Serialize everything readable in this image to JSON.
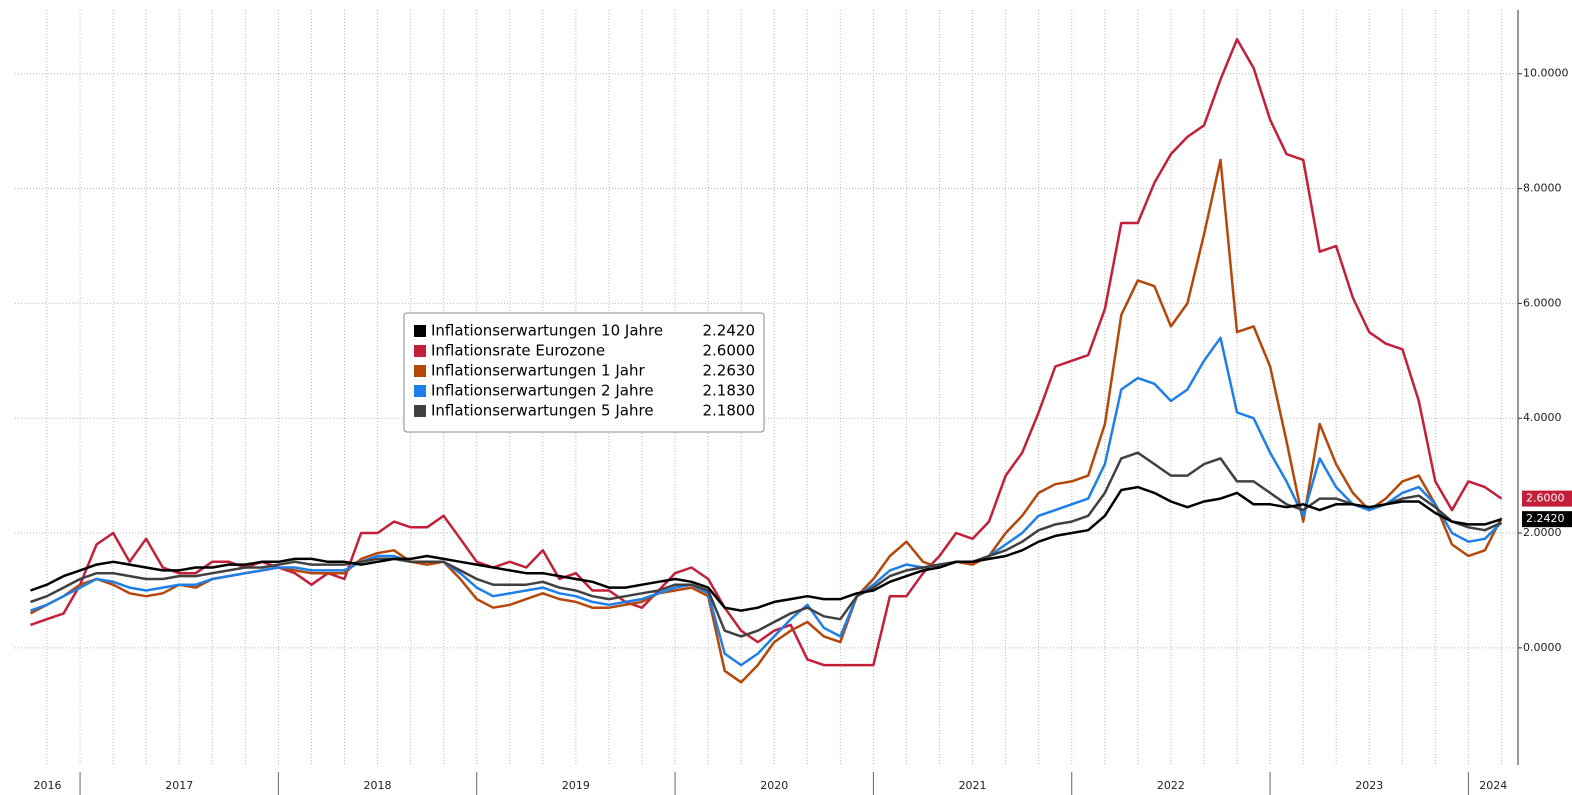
{
  "chart_data": {
    "type": "line",
    "x": [
      2016.75,
      2016.833,
      2016.917,
      2017.0,
      2017.083,
      2017.167,
      2017.25,
      2017.333,
      2017.417,
      2017.5,
      2017.583,
      2017.667,
      2017.75,
      2017.833,
      2017.917,
      2018.0,
      2018.083,
      2018.167,
      2018.25,
      2018.333,
      2018.417,
      2018.5,
      2018.583,
      2018.667,
      2018.75,
      2018.833,
      2018.917,
      2019.0,
      2019.083,
      2019.167,
      2019.25,
      2019.333,
      2019.417,
      2019.5,
      2019.583,
      2019.667,
      2019.75,
      2019.833,
      2019.917,
      2020.0,
      2020.083,
      2020.167,
      2020.25,
      2020.333,
      2020.417,
      2020.5,
      2020.583,
      2020.667,
      2020.75,
      2020.833,
      2020.917,
      2021.0,
      2021.083,
      2021.167,
      2021.25,
      2021.333,
      2021.417,
      2021.5,
      2021.583,
      2021.667,
      2021.75,
      2021.833,
      2021.917,
      2022.0,
      2022.083,
      2022.167,
      2022.25,
      2022.333,
      2022.417,
      2022.5,
      2022.583,
      2022.667,
      2022.75,
      2022.833,
      2022.917,
      2023.0,
      2023.083,
      2023.167,
      2023.25,
      2023.333,
      2023.417,
      2023.5,
      2023.583,
      2023.667,
      2023.75,
      2023.833,
      2023.917,
      2024.0,
      2024.083,
      2024.167
    ],
    "series": [
      {
        "name": "Inflationsrate Eurozone",
        "color": "#c41e3a",
        "value_label": "2.6000",
        "values": [
          0.4,
          0.5,
          0.6,
          1.1,
          1.8,
          2.0,
          1.5,
          1.9,
          1.4,
          1.3,
          1.3,
          1.5,
          1.5,
          1.4,
          1.5,
          1.4,
          1.3,
          1.1,
          1.3,
          1.2,
          2.0,
          2.0,
          2.2,
          2.1,
          2.1,
          2.3,
          1.9,
          1.5,
          1.4,
          1.5,
          1.4,
          1.7,
          1.2,
          1.3,
          1.0,
          1.0,
          0.8,
          0.7,
          1.0,
          1.3,
          1.4,
          1.2,
          0.7,
          0.3,
          0.1,
          0.3,
          0.4,
          -0.2,
          -0.3,
          -0.3,
          -0.3,
          -0.3,
          0.9,
          0.9,
          1.3,
          1.6,
          2.0,
          1.9,
          2.2,
          3.0,
          3.4,
          4.1,
          4.9,
          5.0,
          5.1,
          5.9,
          7.4,
          7.4,
          8.1,
          8.6,
          8.9,
          9.1,
          9.9,
          10.6,
          10.1,
          9.2,
          8.6,
          8.5,
          6.9,
          7.0,
          6.1,
          5.5,
          5.3,
          5.2,
          4.3,
          2.9,
          2.4,
          2.9,
          2.8,
          2.6
        ]
      },
      {
        "name": "Inflationserwartungen 1 Jahr",
        "color": "#b5470b",
        "value_label": "2.2630",
        "values": [
          0.6,
          0.75,
          0.9,
          1.1,
          1.2,
          1.1,
          0.95,
          0.9,
          0.95,
          1.1,
          1.05,
          1.2,
          1.25,
          1.3,
          1.35,
          1.4,
          1.35,
          1.3,
          1.3,
          1.3,
          1.55,
          1.65,
          1.7,
          1.5,
          1.45,
          1.5,
          1.2,
          0.85,
          0.7,
          0.75,
          0.85,
          0.95,
          0.85,
          0.8,
          0.7,
          0.7,
          0.75,
          0.8,
          0.95,
          1.0,
          1.05,
          0.9,
          -0.4,
          -0.6,
          -0.3,
          0.1,
          0.3,
          0.45,
          0.2,
          0.1,
          0.9,
          1.2,
          1.6,
          1.85,
          1.5,
          1.4,
          1.5,
          1.45,
          1.6,
          2.0,
          2.3,
          2.7,
          2.85,
          2.9,
          3.0,
          3.9,
          5.8,
          6.4,
          6.3,
          5.6,
          6.0,
          7.2,
          8.5,
          5.5,
          5.6,
          4.9,
          3.6,
          2.2,
          3.9,
          3.2,
          2.7,
          2.4,
          2.6,
          2.9,
          3.0,
          2.5,
          1.8,
          1.6,
          1.7,
          2.263
        ]
      },
      {
        "name": "Inflationserwartungen 2 Jahre",
        "color": "#1e7fe8",
        "value_label": "2.1830",
        "values": [
          0.65,
          0.75,
          0.9,
          1.05,
          1.2,
          1.15,
          1.05,
          1.0,
          1.05,
          1.1,
          1.1,
          1.2,
          1.25,
          1.3,
          1.35,
          1.4,
          1.4,
          1.35,
          1.35,
          1.35,
          1.5,
          1.6,
          1.6,
          1.5,
          1.5,
          1.5,
          1.3,
          1.05,
          0.9,
          0.95,
          1.0,
          1.05,
          0.95,
          0.9,
          0.8,
          0.75,
          0.8,
          0.85,
          0.95,
          1.05,
          1.1,
          0.95,
          -0.1,
          -0.3,
          -0.1,
          0.2,
          0.5,
          0.75,
          0.35,
          0.2,
          0.9,
          1.1,
          1.35,
          1.45,
          1.4,
          1.45,
          1.5,
          1.5,
          1.6,
          1.8,
          2.0,
          2.3,
          2.4,
          2.5,
          2.6,
          3.2,
          4.5,
          4.7,
          4.6,
          4.3,
          4.5,
          5.0,
          5.4,
          4.1,
          4.0,
          3.4,
          2.9,
          2.3,
          3.3,
          2.8,
          2.5,
          2.4,
          2.5,
          2.7,
          2.8,
          2.5,
          2.0,
          1.85,
          1.9,
          2.183
        ]
      },
      {
        "name": "Inflationserwartungen 5 Jahre",
        "color": "#404040",
        "value_label": "2.1800",
        "values": [
          0.8,
          0.9,
          1.05,
          1.2,
          1.3,
          1.3,
          1.25,
          1.2,
          1.2,
          1.25,
          1.25,
          1.3,
          1.35,
          1.4,
          1.4,
          1.45,
          1.5,
          1.45,
          1.45,
          1.45,
          1.5,
          1.55,
          1.55,
          1.5,
          1.5,
          1.5,
          1.35,
          1.2,
          1.1,
          1.1,
          1.1,
          1.15,
          1.05,
          1.0,
          0.9,
          0.85,
          0.9,
          0.95,
          1.0,
          1.1,
          1.1,
          1.0,
          0.3,
          0.2,
          0.3,
          0.45,
          0.6,
          0.7,
          0.55,
          0.5,
          0.9,
          1.05,
          1.25,
          1.35,
          1.4,
          1.45,
          1.5,
          1.5,
          1.6,
          1.7,
          1.85,
          2.05,
          2.15,
          2.2,
          2.3,
          2.7,
          3.3,
          3.4,
          3.2,
          3.0,
          3.0,
          3.2,
          3.3,
          2.9,
          2.9,
          2.7,
          2.5,
          2.4,
          2.6,
          2.6,
          2.5,
          2.45,
          2.5,
          2.6,
          2.65,
          2.45,
          2.2,
          2.1,
          2.05,
          2.18
        ]
      },
      {
        "name": "Inflationserwartungen 10 Jahre",
        "color": "#000000",
        "value_label": "2.2420",
        "values": [
          1.0,
          1.1,
          1.25,
          1.35,
          1.45,
          1.5,
          1.45,
          1.4,
          1.35,
          1.35,
          1.4,
          1.4,
          1.45,
          1.45,
          1.5,
          1.5,
          1.55,
          1.55,
          1.5,
          1.5,
          1.45,
          1.5,
          1.55,
          1.55,
          1.6,
          1.55,
          1.5,
          1.45,
          1.4,
          1.35,
          1.3,
          1.3,
          1.25,
          1.2,
          1.15,
          1.05,
          1.05,
          1.1,
          1.15,
          1.2,
          1.15,
          1.05,
          0.7,
          0.65,
          0.7,
          0.8,
          0.85,
          0.9,
          0.85,
          0.85,
          0.95,
          1.0,
          1.15,
          1.25,
          1.35,
          1.4,
          1.5,
          1.5,
          1.55,
          1.6,
          1.7,
          1.85,
          1.95,
          2.0,
          2.05,
          2.3,
          2.75,
          2.8,
          2.7,
          2.55,
          2.45,
          2.55,
          2.6,
          2.7,
          2.5,
          2.5,
          2.45,
          2.5,
          2.4,
          2.5,
          2.5,
          2.45,
          2.5,
          2.55,
          2.55,
          2.35,
          2.2,
          2.15,
          2.15,
          2.242
        ]
      }
    ],
    "legend_order": [
      4,
      0,
      1,
      2,
      3
    ],
    "right_tags": [
      0,
      4
    ],
    "xlim": [
      2016.672,
      2024.25
    ],
    "xticks": [
      2017,
      2018,
      2019,
      2020,
      2021,
      2022,
      2023,
      2024
    ],
    "xlabels": [
      {
        "value": 2016,
        "label": "2016"
      },
      {
        "value": 2017,
        "label": "2017"
      },
      {
        "value": 2018,
        "label": "2018"
      },
      {
        "value": 2019,
        "label": "2019"
      },
      {
        "value": 2020,
        "label": "2020"
      },
      {
        "value": 2021,
        "label": "2021"
      },
      {
        "value": 2022,
        "label": "2022"
      },
      {
        "value": 2023,
        "label": "2023"
      },
      {
        "value": 2024,
        "label": "2024"
      }
    ],
    "ylim": [
      -2.04,
      11.11
    ],
    "yticks": [
      {
        "value": 0,
        "label": "0.0000"
      },
      {
        "value": 2,
        "label": "2.0000"
      },
      {
        "value": 4,
        "label": "4.0000"
      },
      {
        "value": 6,
        "label": "6.0000"
      },
      {
        "value": 8,
        "label": "8.0000"
      },
      {
        "value": 10,
        "label": "10.0000"
      }
    ],
    "grid": true
  }
}
